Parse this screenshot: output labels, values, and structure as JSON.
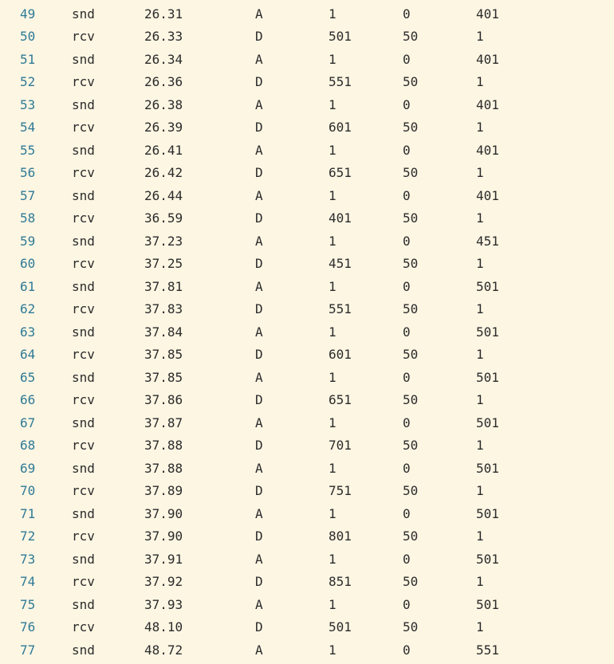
{
  "rows": [
    [
      "49",
      "snd",
      "26.31",
      "A",
      "1",
      "0",
      "401"
    ],
    [
      "50",
      "rcv",
      "26.33",
      "D",
      "501",
      "50",
      "1"
    ],
    [
      "51",
      "snd",
      "26.34",
      "A",
      "1",
      "0",
      "401"
    ],
    [
      "52",
      "rcv",
      "26.36",
      "D",
      "551",
      "50",
      "1"
    ],
    [
      "53",
      "snd",
      "26.38",
      "A",
      "1",
      "0",
      "401"
    ],
    [
      "54",
      "rcv",
      "26.39",
      "D",
      "601",
      "50",
      "1"
    ],
    [
      "55",
      "snd",
      "26.41",
      "A",
      "1",
      "0",
      "401"
    ],
    [
      "56",
      "rcv",
      "26.42",
      "D",
      "651",
      "50",
      "1"
    ],
    [
      "57",
      "snd",
      "26.44",
      "A",
      "1",
      "0",
      "401"
    ],
    [
      "58",
      "rcv",
      "36.59",
      "D",
      "401",
      "50",
      "1"
    ],
    [
      "59",
      "snd",
      "37.23",
      "A",
      "1",
      "0",
      "451"
    ],
    [
      "60",
      "rcv",
      "37.25",
      "D",
      "451",
      "50",
      "1"
    ],
    [
      "61",
      "snd",
      "37.81",
      "A",
      "1",
      "0",
      "501"
    ],
    [
      "62",
      "rcv",
      "37.83",
      "D",
      "551",
      "50",
      "1"
    ],
    [
      "63",
      "snd",
      "37.84",
      "A",
      "1",
      "0",
      "501"
    ],
    [
      "64",
      "rcv",
      "37.85",
      "D",
      "601",
      "50",
      "1"
    ],
    [
      "65",
      "snd",
      "37.85",
      "A",
      "1",
      "0",
      "501"
    ],
    [
      "66",
      "rcv",
      "37.86",
      "D",
      "651",
      "50",
      "1"
    ],
    [
      "67",
      "snd",
      "37.87",
      "A",
      "1",
      "0",
      "501"
    ],
    [
      "68",
      "rcv",
      "37.88",
      "D",
      "701",
      "50",
      "1"
    ],
    [
      "69",
      "snd",
      "37.88",
      "A",
      "1",
      "0",
      "501"
    ],
    [
      "70",
      "rcv",
      "37.89",
      "D",
      "751",
      "50",
      "1"
    ],
    [
      "71",
      "snd",
      "37.90",
      "A",
      "1",
      "0",
      "501"
    ],
    [
      "72",
      "rcv",
      "37.90",
      "D",
      "801",
      "50",
      "1"
    ],
    [
      "73",
      "snd",
      "37.91",
      "A",
      "1",
      "0",
      "501"
    ],
    [
      "74",
      "rcv",
      "37.92",
      "D",
      "851",
      "50",
      "1"
    ],
    [
      "75",
      "snd",
      "37.93",
      "A",
      "1",
      "0",
      "501"
    ],
    [
      "76",
      "rcv",
      "48.10",
      "D",
      "501",
      "50",
      "1"
    ],
    [
      "77",
      "snd",
      "48.72",
      "A",
      "1",
      "0",
      "551"
    ]
  ],
  "colors": {
    "background": "#fdf6e3",
    "line_number": "#2f7a96",
    "text": "#2b2b2b"
  }
}
